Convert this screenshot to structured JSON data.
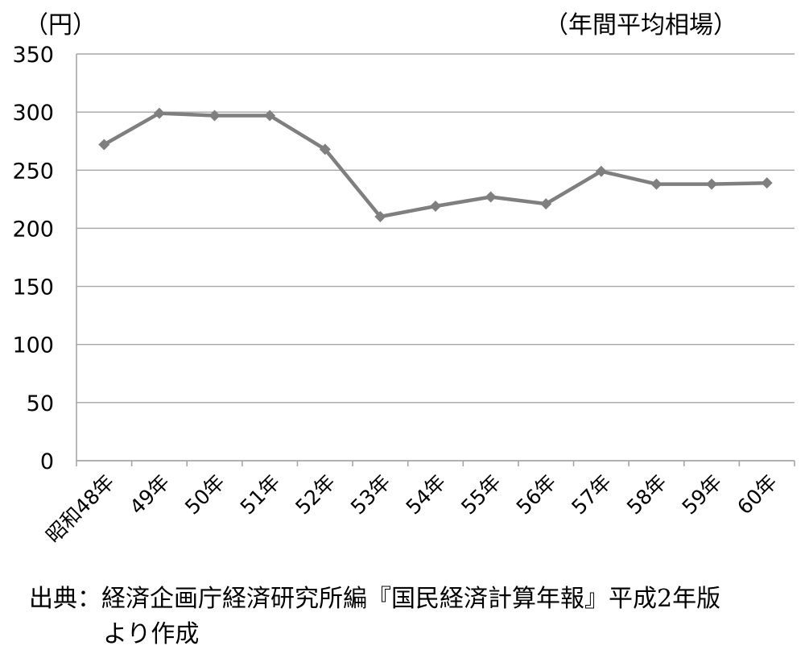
{
  "unit_label": "（円）",
  "subtitle": "（年間平均相場）",
  "source": {
    "line1": "出典：経済企画庁経済研究所編『国民経済計算年報』平成2年版",
    "line2": "より作成"
  },
  "chart_data": {
    "type": "line",
    "title": "",
    "xlabel": "",
    "ylabel": "",
    "unit": "（円）",
    "note": "（年間平均相場）",
    "categories": [
      "昭和48年",
      "49年",
      "50年",
      "51年",
      "52年",
      "53年",
      "54年",
      "55年",
      "56年",
      "57年",
      "58年",
      "59年",
      "60年"
    ],
    "series": [
      {
        "values": [
          272,
          299,
          297,
          297,
          268,
          210,
          219,
          227,
          221,
          249,
          238,
          238,
          239
        ],
        "color": "#7f7f7f"
      }
    ],
    "ylim": [
      0,
      350
    ],
    "yticks": [
      0,
      50,
      100,
      150,
      200,
      250,
      300,
      350
    ],
    "grid": true,
    "legend": "none",
    "marker": "diamond"
  }
}
